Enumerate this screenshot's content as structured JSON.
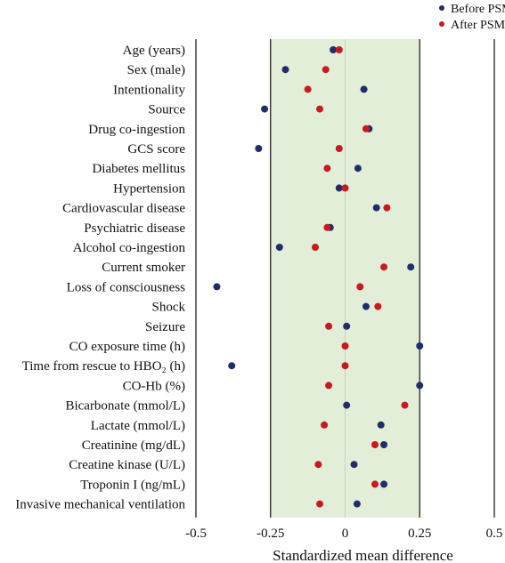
{
  "chart_data": {
    "type": "scatter",
    "xlabel": "Standardized mean difference",
    "ylabel": "",
    "xlim": [
      -0.5,
      0.5
    ],
    "xticks": [
      "-0.5",
      "-0.25",
      "0",
      "0.25",
      "0.5"
    ],
    "xtick_values": [
      -0.5,
      -0.25,
      0,
      0.25,
      0.5
    ],
    "shaded_region": [
      -0.25,
      0.25
    ],
    "shaded_color": "#e3eed8",
    "reference_lines": [
      -0.25,
      0.25
    ],
    "grid": false,
    "legend_position": "top-right",
    "categories": [
      "Age (years)",
      "Sex (male)",
      "Intentionality",
      "Source",
      "Drug co-ingestion",
      "GCS score",
      "Diabetes mellitus",
      "Hypertension",
      "Cardiovascular disease",
      "Psychiatric disease",
      "Alcohol co-ingestion",
      "Current smoker",
      "Loss of consciousness",
      "Shock",
      "Seizure",
      "CO exposure time (h)",
      "Time from rescue to HBO₂ (h)",
      "CO-Hb (%)",
      "Bicarbonate (mmol/L)",
      "Lactate (mmol/L)",
      "Creatinine (mg/dL)",
      "Creatine kinase (U/L)",
      "Troponin I (ng/mL)",
      "Invasive mechanical ventilation"
    ],
    "series": [
      {
        "name": "Before PSM",
        "color": "#1f2d6b",
        "values": [
          -0.04,
          -0.2,
          0.063,
          -0.27,
          0.08,
          -0.29,
          0.043,
          -0.02,
          0.105,
          -0.05,
          -0.22,
          0.22,
          -0.43,
          0.07,
          0.005,
          0.25,
          -0.38,
          0.25,
          0.005,
          0.12,
          0.13,
          0.03,
          0.13,
          0.04
        ]
      },
      {
        "name": "After PSM",
        "color": "#c8191e",
        "values": [
          -0.02,
          -0.065,
          -0.125,
          -0.085,
          0.07,
          -0.02,
          -0.06,
          0.0,
          0.14,
          -0.06,
          -0.1,
          0.13,
          0.05,
          0.11,
          -0.055,
          0.0,
          0.0,
          -0.055,
          0.2,
          -0.07,
          0.1,
          -0.09,
          0.1,
          -0.085
        ]
      }
    ]
  }
}
